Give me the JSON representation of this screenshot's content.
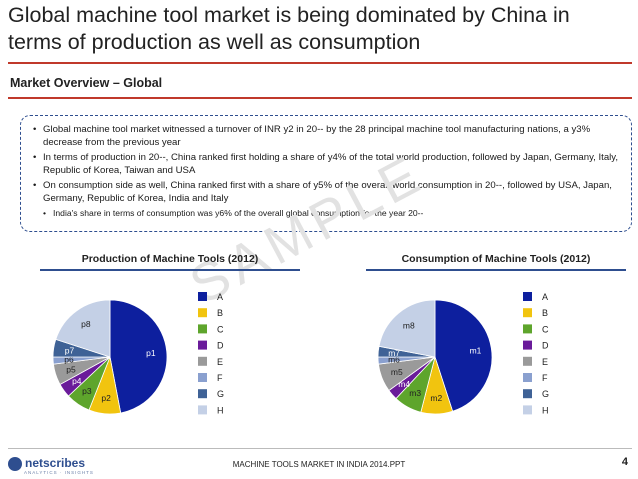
{
  "slide": {
    "title": "Global machine tool market is being dominated by China in terms of production as well as consumption",
    "section_title": "Market Overview – Global",
    "bullets": [
      "Global machine tool market witnessed a turnover of INR y2 in 20-- by the 28 principal machine tool manufacturing nations, a y3% decrease from the previous year",
      "In terms of production in 20--, China ranked first holding a share of y4% of the total world production, followed by Japan, Germany, Italy, Republic of Korea, Taiwan and USA",
      "On consumption side as well, China ranked first with a share of y5% of the overall world consumption in 20--, followed by USA, Japan, Germany, Republic of Korea, India and Italy"
    ],
    "sub_bullet": "India's share in terms of consumption was y6% of the overall global consumption for the year 20--",
    "watermark": "SAMPLE",
    "footer": {
      "logo": "netscribes",
      "logo_sub": "ANALYTICS · INSIGHTS",
      "text": "MACHINE TOOLS MARKET IN INDIA 2014.PPT",
      "page": "4"
    }
  },
  "colors": {
    "accent_rule": "#c0392b",
    "box_border": "#2e4e8f",
    "A": "#0d1f9e",
    "B": "#f1c40f",
    "C": "#5ea52c",
    "D": "#6a1b9a",
    "E": "#9a9a9a",
    "F": "#8aa0cf",
    "G": "#3f6296",
    "H": "#c4d0e6"
  },
  "chart_data": [
    {
      "type": "pie",
      "title": "Production of Machine Tools (2012)",
      "legend": [
        "A",
        "B",
        "C",
        "D",
        "E",
        "F",
        "G",
        "H"
      ],
      "legend_position": "right",
      "slices": [
        {
          "label": "p1",
          "legend": "A",
          "value": 47
        },
        {
          "label": "p2",
          "legend": "B",
          "value": 9
        },
        {
          "label": "p3",
          "legend": "C",
          "value": 7
        },
        {
          "label": "p4",
          "legend": "D",
          "value": 4
        },
        {
          "label": "p5",
          "legend": "E",
          "value": 6
        },
        {
          "label": "p6",
          "legend": "F",
          "value": 2
        },
        {
          "label": "p7",
          "legend": "G",
          "value": 5
        },
        {
          "label": "p8",
          "legend": "H",
          "value": 20
        }
      ]
    },
    {
      "type": "pie",
      "title": "Consumption of Machine Tools (2012)",
      "legend": [
        "A",
        "B",
        "C",
        "D",
        "E",
        "F",
        "G",
        "H"
      ],
      "legend_position": "right",
      "slices": [
        {
          "label": "m1",
          "legend": "A",
          "value": 45
        },
        {
          "label": "m2",
          "legend": "B",
          "value": 9
        },
        {
          "label": "m3",
          "legend": "C",
          "value": 8
        },
        {
          "label": "m4",
          "legend": "D",
          "value": 3
        },
        {
          "label": "m5",
          "legend": "E",
          "value": 8
        },
        {
          "label": "m6",
          "legend": "F",
          "value": 2
        },
        {
          "label": "m7",
          "legend": "G",
          "value": 3
        },
        {
          "label": "m8",
          "legend": "H",
          "value": 22
        }
      ]
    }
  ]
}
